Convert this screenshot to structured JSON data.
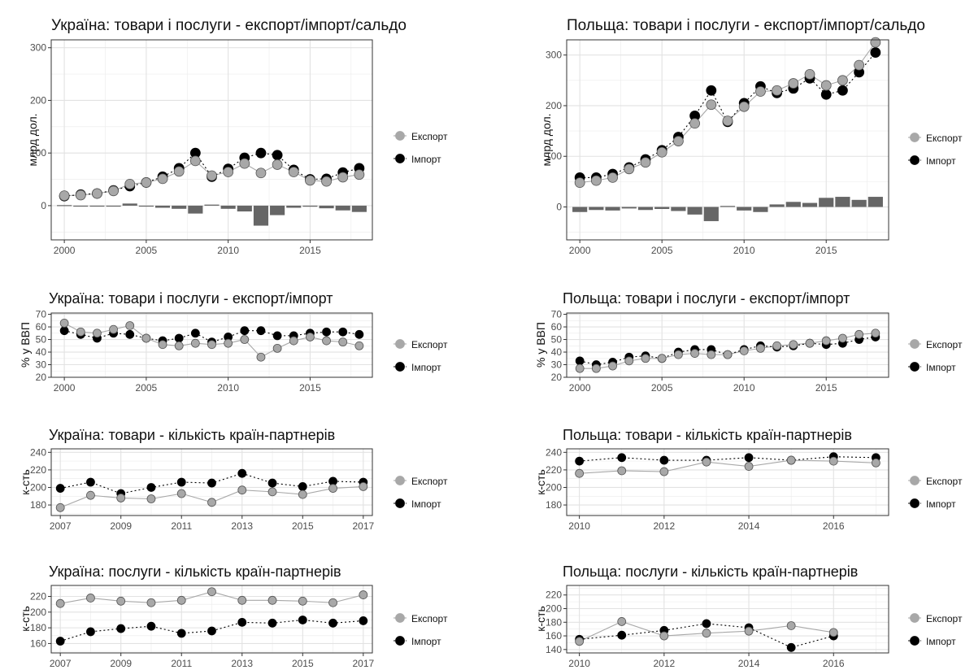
{
  "legend_labels": [
    "Експорт",
    "Імпорт"
  ],
  "colors": {
    "export": "#a8a8a8",
    "import": "#000000",
    "balance": "#666666",
    "grid": "#ebebeb"
  },
  "chart_data": [
    {
      "id": "ua-trade-usd",
      "type": "line",
      "title": "Україна: товари і послуги - експорт/імпорт/сальдо",
      "ylabel": "млрд дол.",
      "xlim": [
        1999.2,
        2018.8
      ],
      "ylim": [
        -65,
        315
      ],
      "xticks": [
        2000,
        2005,
        2010,
        2015
      ],
      "yticks": [
        0,
        100,
        200,
        300
      ],
      "x": [
        2000,
        2001,
        2002,
        2003,
        2004,
        2005,
        2006,
        2007,
        2008,
        2009,
        2010,
        2011,
        2012,
        2013,
        2014,
        2015,
        2016,
        2017,
        2018
      ],
      "series": [
        {
          "name": "Експорт",
          "values": [
            19,
            20,
            23,
            28,
            41,
            44,
            51,
            65,
            85,
            57,
            64,
            80,
            62,
            78,
            64,
            48,
            46,
            54,
            59
          ]
        },
        {
          "name": "Імпорт",
          "values": [
            18,
            21,
            23,
            29,
            37,
            44,
            55,
            71,
            100,
            55,
            70,
            91,
            100,
            96,
            68,
            50,
            51,
            63,
            71
          ]
        }
      ],
      "bars": {
        "name": "Сальдо",
        "values": [
          1,
          -1,
          0,
          -1,
          4,
          0,
          -4,
          -6,
          -15,
          2,
          -6,
          -11,
          -38,
          -18,
          -4,
          -2,
          -5,
          -9,
          -12
        ]
      },
      "legend": "right",
      "grid": true
    },
    {
      "id": "pl-trade-usd",
      "type": "line",
      "title": "Польща: товари і послуги - експорт/імпорт/сальдо",
      "ylabel": "млрд дол.",
      "xlim": [
        1999.2,
        2018.8
      ],
      "ylim": [
        -65,
        330
      ],
      "xticks": [
        2000,
        2005,
        2010,
        2015
      ],
      "yticks": [
        0,
        100,
        200,
        300
      ],
      "x": [
        2000,
        2001,
        2002,
        2003,
        2004,
        2005,
        2006,
        2007,
        2008,
        2009,
        2010,
        2011,
        2012,
        2013,
        2014,
        2015,
        2016,
        2017,
        2018
      ],
      "series": [
        {
          "name": "Експорт",
          "values": [
            48,
            52,
            58,
            75,
            88,
            108,
            130,
            165,
            202,
            170,
            198,
            228,
            230,
            244,
            262,
            240,
            250,
            280,
            325
          ]
        },
        {
          "name": "Імпорт",
          "values": [
            58,
            58,
            65,
            78,
            94,
            112,
            138,
            180,
            230,
            168,
            205,
            238,
            225,
            234,
            254,
            222,
            230,
            266,
            305
          ]
        }
      ],
      "bars": {
        "name": "Сальдо",
        "values": [
          -10,
          -6,
          -7,
          -3,
          -6,
          -4,
          -8,
          -15,
          -28,
          2,
          -7,
          -10,
          5,
          10,
          8,
          18,
          20,
          14,
          20
        ]
      },
      "legend": "right",
      "grid": true
    },
    {
      "id": "ua-trade-gdp",
      "type": "line",
      "title": "Україна: товари і послуги - експорт/імпорт",
      "ylabel": "% у ВВП",
      "xlim": [
        1999.2,
        2018.8
      ],
      "ylim": [
        20,
        71
      ],
      "xticks": [
        2000,
        2005,
        2010,
        2015
      ],
      "yticks": [
        20,
        30,
        40,
        50,
        60,
        70
      ],
      "x": [
        2000,
        2001,
        2002,
        2003,
        2004,
        2005,
        2006,
        2007,
        2008,
        2009,
        2010,
        2011,
        2012,
        2013,
        2014,
        2015,
        2016,
        2017,
        2018
      ],
      "series": [
        {
          "name": "Експорт",
          "values": [
            63,
            56,
            55,
            58,
            61,
            51,
            46,
            45,
            47,
            46,
            47,
            50,
            36,
            43,
            49,
            52,
            49,
            48,
            45
          ]
        },
        {
          "name": "Імпорт",
          "values": [
            57,
            54,
            51,
            55,
            54,
            51,
            49,
            51,
            55,
            48,
            52,
            57,
            57,
            53,
            53,
            55,
            56,
            56,
            54
          ]
        }
      ],
      "legend": "right",
      "grid": true
    },
    {
      "id": "pl-trade-gdp",
      "type": "line",
      "title": "Польща: товари і послуги - експорт/імпорт",
      "ylabel": "% у ВВП",
      "xlim": [
        1999.2,
        2018.8
      ],
      "ylim": [
        20,
        71
      ],
      "xticks": [
        2000,
        2005,
        2010,
        2015
      ],
      "yticks": [
        20,
        30,
        40,
        50,
        60,
        70
      ],
      "x": [
        2000,
        2001,
        2002,
        2003,
        2004,
        2005,
        2006,
        2007,
        2008,
        2009,
        2010,
        2011,
        2012,
        2013,
        2014,
        2015,
        2016,
        2017,
        2018
      ],
      "series": [
        {
          "name": "Експорт",
          "values": [
            27,
            27,
            29,
            33,
            35,
            35,
            38,
            39,
            38,
            38,
            41,
            43,
            45,
            46,
            47,
            49,
            51,
            54,
            55
          ]
        },
        {
          "name": "Імпорт",
          "values": [
            33,
            30,
            32,
            36,
            37,
            35,
            40,
            42,
            42,
            38,
            42,
            45,
            44,
            45,
            47,
            46,
            47,
            50,
            52
          ]
        }
      ],
      "legend": "right",
      "grid": true
    },
    {
      "id": "ua-goods-partners",
      "type": "line",
      "title": "Україна: товари - кількість країн-партнерів",
      "ylabel": "к-сть",
      "xlim": [
        2006.7,
        2017.3
      ],
      "ylim": [
        168,
        244
      ],
      "xticks": [
        2007,
        2009,
        2011,
        2013,
        2015,
        2017
      ],
      "yticks": [
        180,
        200,
        220,
        240
      ],
      "x": [
        2007,
        2008,
        2009,
        2010,
        2011,
        2012,
        2013,
        2014,
        2015,
        2016,
        2017
      ],
      "series": [
        {
          "name": "Експорт",
          "values": [
            177,
            191,
            188,
            187,
            193,
            183,
            197,
            195,
            192,
            199,
            201
          ]
        },
        {
          "name": "Імпорт",
          "values": [
            199,
            206,
            193,
            200,
            206,
            205,
            216,
            205,
            201,
            207,
            206
          ]
        }
      ],
      "legend": "right",
      "grid": true
    },
    {
      "id": "pl-goods-partners",
      "type": "line",
      "title": "Польща: товари - кількість країн-партнерів",
      "ylabel": "к-сть",
      "xlim": [
        2009.7,
        2017.3
      ],
      "ylim": [
        168,
        244
      ],
      "xticks": [
        2010,
        2012,
        2014,
        2016
      ],
      "yticks": [
        180,
        200,
        220,
        240
      ],
      "x": [
        2010,
        2011,
        2012,
        2013,
        2014,
        2015,
        2016,
        2017
      ],
      "series": [
        {
          "name": "Експорт",
          "values": [
            216,
            219,
            218,
            229,
            224,
            231,
            230,
            228
          ]
        },
        {
          "name": "Імпорт",
          "values": [
            230,
            234,
            231,
            231,
            234,
            231,
            235,
            234
          ]
        }
      ],
      "legend": "right",
      "grid": true
    },
    {
      "id": "ua-services-partners",
      "type": "line",
      "title": "Україна: послуги - кількість країн-партнерів",
      "ylabel": "к-сть",
      "xlim": [
        2006.7,
        2017.3
      ],
      "ylim": [
        148,
        234
      ],
      "xticks": [
        2007,
        2009,
        2011,
        2013,
        2015,
        2017
      ],
      "yticks": [
        160,
        180,
        200,
        220
      ],
      "x": [
        2007,
        2008,
        2009,
        2010,
        2011,
        2012,
        2013,
        2014,
        2015,
        2016,
        2017
      ],
      "series": [
        {
          "name": "Експорт",
          "values": [
            211,
            218,
            214,
            212,
            215,
            226,
            215,
            215,
            214,
            212,
            222
          ]
        },
        {
          "name": "Імпорт",
          "values": [
            163,
            175,
            179,
            182,
            173,
            176,
            187,
            186,
            190,
            186,
            189
          ]
        }
      ],
      "legend": "right",
      "grid": true
    },
    {
      "id": "pl-services-partners",
      "type": "line",
      "title": "Польща: послуги - кількість країн-партнерів",
      "ylabel": "к-сть",
      "xlim": [
        2009.7,
        2017.3
      ],
      "ylim": [
        135,
        234
      ],
      "xticks": [
        2010,
        2012,
        2014,
        2016
      ],
      "yticks": [
        140,
        160,
        180,
        200,
        220
      ],
      "x": [
        2010,
        2011,
        2012,
        2013,
        2014,
        2015,
        2016
      ],
      "series": [
        {
          "name": "Експорт",
          "values": [
            152,
            181,
            160,
            164,
            167,
            175,
            165
          ]
        },
        {
          "name": "Імпорт",
          "values": [
            155,
            161,
            168,
            178,
            172,
            143,
            160
          ]
        }
      ],
      "legend": "right",
      "grid": true
    }
  ]
}
